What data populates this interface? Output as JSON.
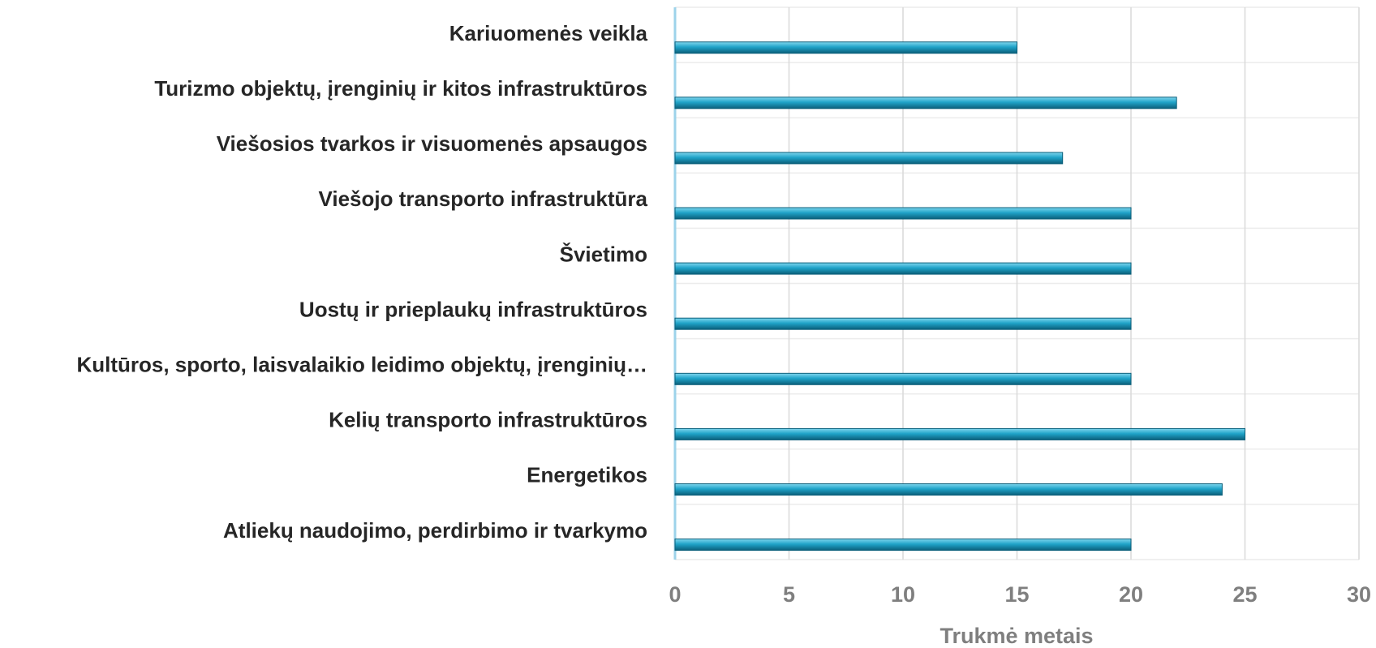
{
  "chart_data": {
    "type": "bar",
    "orientation": "horizontal",
    "x_label": "Trukmė metais",
    "categories": [
      "Kariuomenės veikla",
      "Turizmo objektų, įrenginių ir kitos infrastruktūros",
      "Viešosios tvarkos ir visuomenės apsaugos",
      "Viešojo transporto infrastruktūra",
      "Švietimo",
      "Uostų ir prieplaukų infrastruktūros",
      "Kultūros, sporto, laisvalaikio leidimo objektų, įrenginių…",
      "Kelių transporto infrastruktūros",
      "Energetikos",
      "Atliekų naudojimo, perdirbimo ir tvarkymo"
    ],
    "values": [
      15,
      22,
      17,
      20,
      20,
      20,
      20,
      25,
      24,
      20
    ],
    "color": "#1fa3c8",
    "xlim": [
      0,
      30
    ],
    "xticks": [
      0,
      5,
      10,
      15,
      20,
      25,
      30
    ],
    "grid": true
  }
}
